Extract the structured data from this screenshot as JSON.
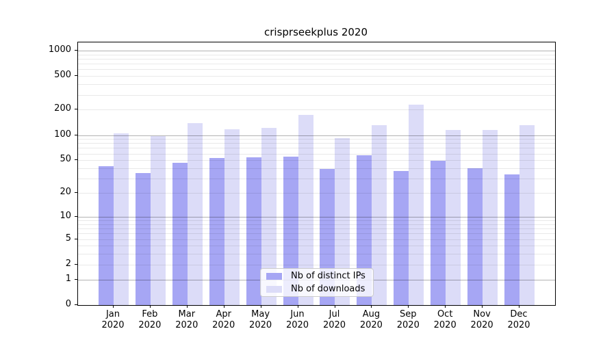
{
  "title": "crisprseekplus 2020",
  "legend": [
    {
      "label": "Nb of distinct IPs",
      "color": "#a6a6f4"
    },
    {
      "label": "Nb of downloads",
      "color": "#dcdcf8"
    }
  ],
  "chart_data": {
    "type": "bar",
    "title": "crisprseekplus 2020",
    "categories": [
      "Jan",
      "Feb",
      "Mar",
      "Apr",
      "May",
      "Jun",
      "Jul",
      "Aug",
      "Sep",
      "Oct",
      "Nov",
      "Dec"
    ],
    "year_label": "2020",
    "series": [
      {
        "name": "Nb of distinct IPs",
        "color": "#a6a6f4",
        "values": [
          42,
          35,
          47,
          53,
          54,
          55,
          39,
          57,
          37,
          49,
          40,
          34
        ]
      },
      {
        "name": "Nb of downloads",
        "color": "#dcdcf8",
        "values": [
          105,
          97,
          139,
          117,
          122,
          175,
          92,
          131,
          230,
          114,
          115,
          130
        ]
      }
    ],
    "yscale": "log10(value+1)",
    "yticks": [
      0,
      1,
      2,
      5,
      10,
      20,
      50,
      100,
      200,
      500,
      1000
    ],
    "major_gridlines": [
      1,
      10,
      100,
      1000
    ],
    "minor_gridlines": [
      2,
      3,
      4,
      5,
      6,
      7,
      8,
      9,
      20,
      30,
      40,
      50,
      60,
      70,
      80,
      90,
      200,
      300,
      400,
      500,
      600,
      700,
      800,
      900
    ],
    "ylim": [
      0,
      1250
    ],
    "legend_position": "lower center",
    "grid": true,
    "background": "#ffffff"
  }
}
